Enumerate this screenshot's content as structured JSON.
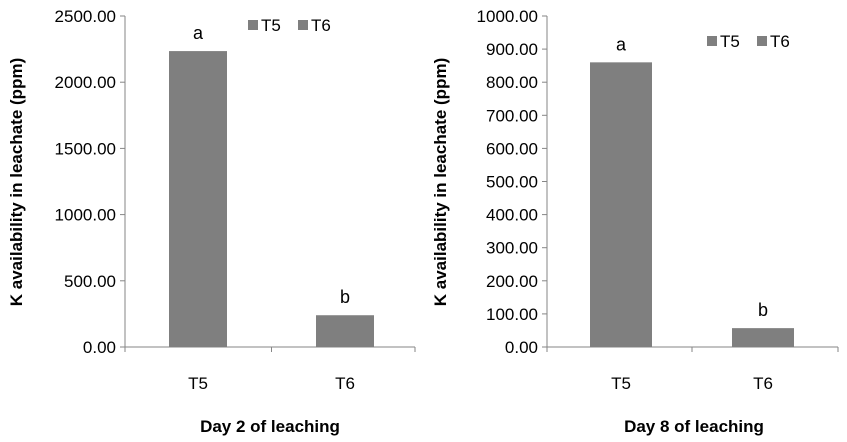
{
  "chart_data": [
    {
      "type": "bar",
      "categories": [
        "T5",
        "T6"
      ],
      "values": [
        2235,
        240
      ],
      "significance_labels": [
        "a",
        "b"
      ],
      "legend": [
        "T5",
        "T6"
      ],
      "legend_position": "top-right",
      "xlabel": "Day 2 of leaching",
      "ylabel": "K availability in leachate (ppm)",
      "ylim": [
        0,
        2500
      ],
      "yticks": [
        "0.00",
        "500.00",
        "1000.00",
        "1500.00",
        "2000.00",
        "2500.00"
      ],
      "bar_color": "#7f7f7f",
      "grid": false
    },
    {
      "type": "bar",
      "categories": [
        "T5",
        "T6"
      ],
      "values": [
        860,
        57
      ],
      "significance_labels": [
        "a",
        "b"
      ],
      "legend": [
        "T5",
        "T6"
      ],
      "legend_position": "top-right",
      "xlabel": "Day 8 of leaching",
      "ylabel": "K availability in leachate (ppm)",
      "ylim": [
        0,
        1000
      ],
      "yticks": [
        "0.00",
        "100.00",
        "200.00",
        "300.00",
        "400.00",
        "500.00",
        "600.00",
        "700.00",
        "800.00",
        "900.00",
        "1000.00"
      ],
      "bar_color": "#7f7f7f",
      "grid": false
    }
  ]
}
